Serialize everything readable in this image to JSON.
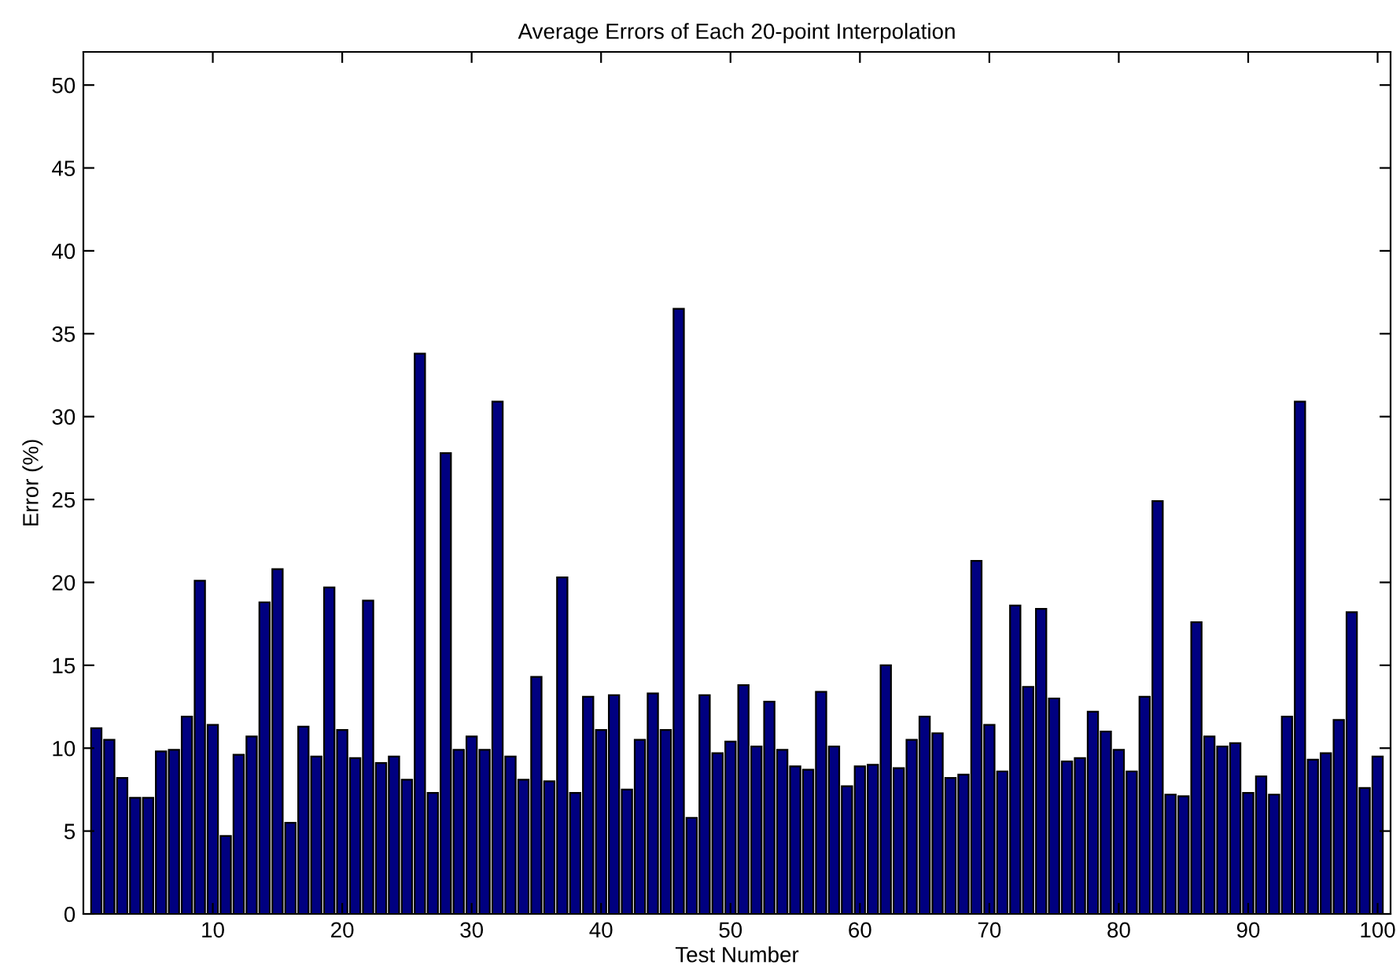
{
  "chart_data": {
    "type": "bar",
    "title": "Average Errors of Each 20-point Interpolation",
    "xlabel": "Test Number",
    "ylabel": "Error (%)",
    "x": [
      1,
      2,
      3,
      4,
      5,
      6,
      7,
      8,
      9,
      10,
      11,
      12,
      13,
      14,
      15,
      16,
      17,
      18,
      19,
      20,
      21,
      22,
      23,
      24,
      25,
      26,
      27,
      28,
      29,
      30,
      31,
      32,
      33,
      34,
      35,
      36,
      37,
      38,
      39,
      40,
      41,
      42,
      43,
      44,
      45,
      46,
      47,
      48,
      49,
      50,
      51,
      52,
      53,
      54,
      55,
      56,
      57,
      58,
      59,
      60,
      61,
      62,
      63,
      64,
      65,
      66,
      67,
      68,
      69,
      70,
      71,
      72,
      73,
      74,
      75,
      76,
      77,
      78,
      79,
      80,
      81,
      82,
      83,
      84,
      85,
      86,
      87,
      88,
      89,
      90,
      91,
      92,
      93,
      94,
      95,
      96,
      97,
      98,
      99,
      100
    ],
    "values": [
      11.2,
      10.5,
      8.2,
      7.0,
      7.0,
      9.8,
      9.9,
      11.9,
      20.1,
      11.4,
      4.7,
      9.6,
      10.7,
      18.8,
      20.8,
      5.5,
      11.3,
      9.5,
      19.7,
      11.1,
      9.4,
      18.9,
      9.1,
      9.5,
      8.1,
      33.8,
      7.3,
      27.8,
      9.9,
      10.7,
      9.9,
      30.9,
      9.5,
      8.1,
      14.3,
      8.0,
      20.3,
      7.3,
      13.1,
      11.1,
      13.2,
      7.5,
      10.5,
      13.3,
      11.1,
      36.5,
      5.8,
      13.2,
      9.7,
      10.4,
      13.8,
      10.1,
      12.8,
      9.9,
      8.9,
      8.7,
      13.4,
      10.1,
      7.7,
      8.9,
      9.0,
      15.0,
      8.8,
      10.5,
      11.9,
      10.9,
      8.2,
      8.4,
      21.3,
      11.4,
      8.6,
      18.6,
      13.7,
      18.4,
      13.0,
      9.2,
      9.4,
      12.2,
      11.0,
      9.9,
      8.6,
      13.1,
      24.9,
      7.2,
      7.1,
      17.6,
      10.7,
      10.1,
      10.3,
      7.3,
      8.3,
      7.2,
      11.9,
      30.9,
      9.3,
      9.7,
      11.7,
      18.2,
      7.6,
      9.5
    ],
    "color": "#000080",
    "xlim": [
      0,
      101
    ],
    "xticks": [
      10,
      20,
      30,
      40,
      50,
      60,
      70,
      80,
      90,
      100
    ],
    "ylim": [
      0,
      52
    ],
    "yticks": [
      0,
      5,
      10,
      15,
      20,
      25,
      30,
      35,
      40,
      45,
      50
    ],
    "grid": false,
    "legend": false
  }
}
